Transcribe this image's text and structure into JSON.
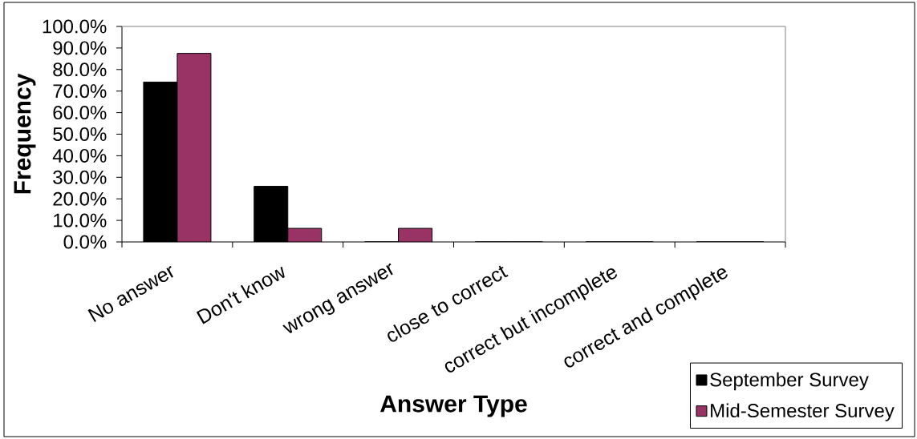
{
  "chart_data": {
    "type": "bar",
    "xlabel": "Answer Type",
    "ylabel": "Frequency",
    "categories": [
      "No answer",
      "Don't know",
      "wrong answer",
      "close to correct",
      "correct but incomplete",
      "correct and complete"
    ],
    "series": [
      {
        "name": "September Survey",
        "color": "#000000",
        "values": [
          74.2,
          25.8,
          0,
          0,
          0,
          0
        ]
      },
      {
        "name": "Mid-Semester Survey",
        "color": "#993366",
        "values": [
          87.5,
          6.3,
          6.3,
          0,
          0,
          0
        ]
      }
    ],
    "ylim": [
      0,
      100
    ],
    "yticks": [
      {
        "value": 0,
        "label": "0.0%"
      },
      {
        "value": 10,
        "label": "10.0%"
      },
      {
        "value": 20,
        "label": "20.0%"
      },
      {
        "value": 30,
        "label": "30.0%"
      },
      {
        "value": 40,
        "label": "40.0%"
      },
      {
        "value": 50,
        "label": "50.0%"
      },
      {
        "value": 60,
        "label": "60.0%"
      },
      {
        "value": 70,
        "label": "70.0%"
      },
      {
        "value": 80,
        "label": "80.0%"
      },
      {
        "value": 90,
        "label": "90.0%"
      },
      {
        "value": 100,
        "label": "100.0%"
      }
    ],
    "legend": "bottom right"
  }
}
